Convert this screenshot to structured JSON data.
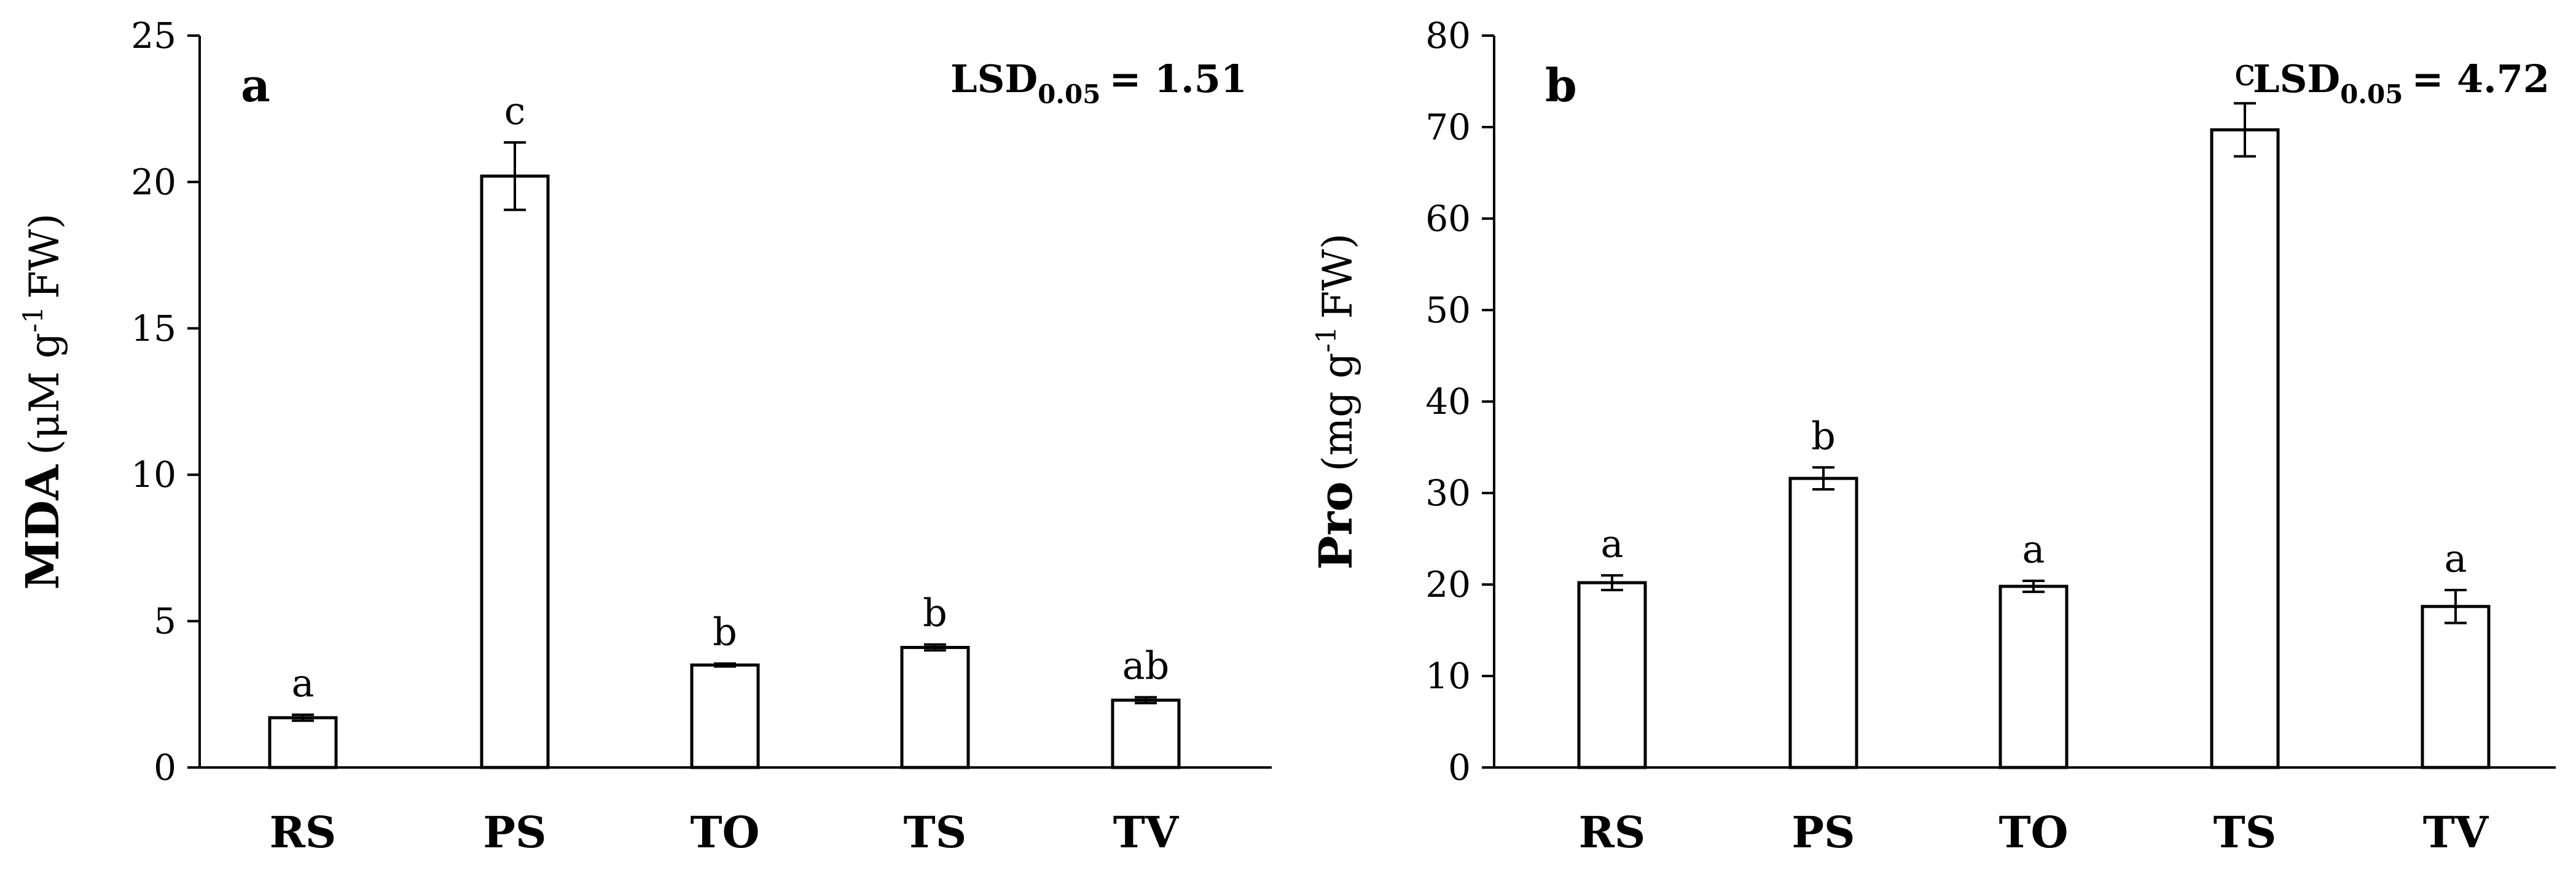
{
  "chart_data": [
    {
      "type": "bar",
      "panel_label": "a",
      "ylabel_bold": "MDA",
      "ylabel_unit_pre": "(μM g",
      "ylabel_unit_sup": "-1",
      "ylabel_unit_post": "FW)",
      "lsd_label": "LSD",
      "lsd_sub": "0.05",
      "lsd_value": "= 1.51",
      "categories": [
        "RS",
        "PS",
        "TO",
        "TS",
        "TV"
      ],
      "values": [
        1.7,
        20.2,
        3.5,
        4.1,
        2.3
      ],
      "errors": [
        0.1,
        1.15,
        0.05,
        0.1,
        0.1
      ],
      "significance": [
        "a",
        "c",
        "b",
        "b",
        "ab"
      ],
      "ylim": [
        0,
        25
      ],
      "yticks": [
        0,
        5,
        10,
        15,
        20,
        25
      ],
      "grid": false
    },
    {
      "type": "bar",
      "panel_label": "b",
      "ylabel_bold": "Pro",
      "ylabel_unit_pre": "(mg g",
      "ylabel_unit_sup": "-1",
      "ylabel_unit_post": "FW)",
      "lsd_label": "LSD",
      "lsd_sub": "0.05",
      "lsd_value": "= 4.72",
      "categories": [
        "RS",
        "PS",
        "TO",
        "TS",
        "TV"
      ],
      "values": [
        20.2,
        31.6,
        19.8,
        69.7,
        17.6
      ],
      "errors": [
        0.8,
        1.2,
        0.6,
        2.9,
        1.8
      ],
      "significance": [
        "a",
        "b",
        "a",
        "c",
        "a"
      ],
      "ylim": [
        0,
        80
      ],
      "yticks": [
        0,
        10,
        20,
        30,
        40,
        50,
        60,
        70,
        80
      ],
      "grid": false
    }
  ]
}
